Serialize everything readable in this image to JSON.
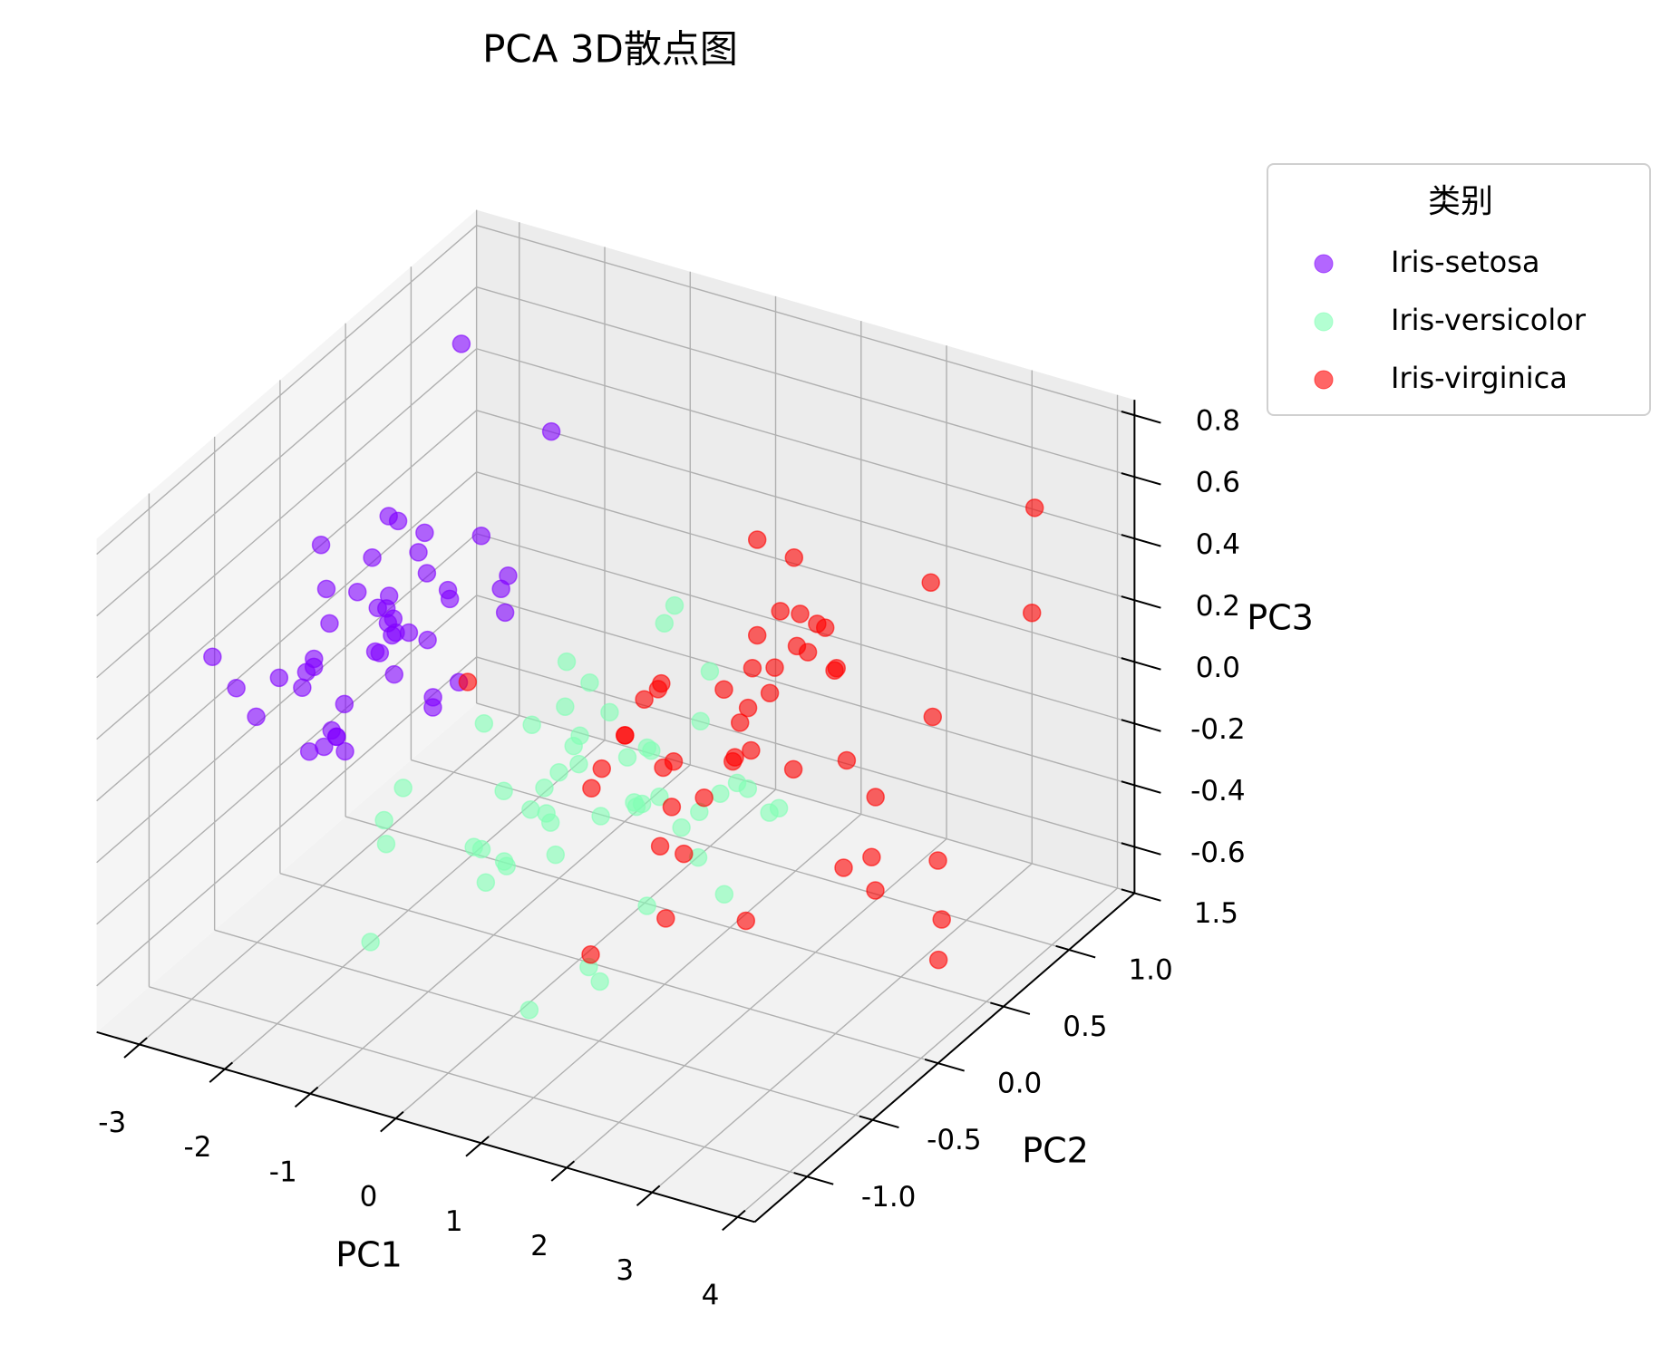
{
  "chart_data": {
    "type": "scatter3d",
    "title": "PCA 3D散点图",
    "x_label": "PC1",
    "y_label": "PC2",
    "z_label": "PC3",
    "xlim": [
      -3.5,
      4.2
    ],
    "ylim": [
      -1.4,
      1.5
    ],
    "zlim": [
      -0.75,
      0.85
    ],
    "xticks": [
      -3,
      -2,
      -1,
      0,
      1,
      2,
      3,
      4
    ],
    "yticks": [
      {
        "value": -1,
        "label": "-1.0"
      },
      -0.5,
      {
        "value": 0,
        "label": "0.0"
      },
      0.5,
      {
        "value": 1,
        "label": "1.0"
      },
      1.5
    ],
    "zticks": [
      -0.6,
      -0.4,
      -0.2,
      {
        "value": 0,
        "label": "0.0"
      },
      0.2,
      0.4,
      0.6,
      0.8
    ],
    "grid": true,
    "alpha": 0.6,
    "legend": {
      "title": "类别",
      "position": "upper right outside"
    },
    "series": [
      {
        "name": "Iris-setosa",
        "color": "#8000ff",
        "x": [
          -2.68,
          -2.71,
          -2.89,
          -2.75,
          -2.73,
          -2.28,
          -2.82,
          -2.63,
          -2.89,
          -2.67,
          -2.51,
          -2.61,
          -2.79,
          -3.23,
          -2.64,
          -2.38,
          -2.62,
          -2.65,
          -2.2,
          -2.59,
          -2.31,
          -2.54,
          -3.22,
          -2.3,
          -2.36,
          -2.51,
          -2.47,
          -2.56,
          -2.64,
          -2.63,
          -2.59,
          -2.41,
          -2.65,
          -2.6,
          -2.67,
          -2.87,
          -2.63,
          -2.98,
          -2.59,
          -2.77,
          -2.85,
          -2.99,
          -2.41,
          -2.21,
          -2.72,
          -2.54,
          -2.84,
          -2.64
        ],
        "y": [
          0.32,
          -0.18,
          -0.14,
          -0.32,
          0.33,
          0.74,
          -0.09,
          0.16,
          -0.58,
          -0.11,
          0.65,
          0.01,
          -0.24,
          -0.51,
          1.18,
          1.34,
          0.81,
          0.31,
          0.87,
          0.51,
          0.39,
          0.43,
          0.13,
          0.1,
          -0.04,
          -0.15,
          0.14,
          0.37,
          0.31,
          -0.19,
          -0.2,
          0.41,
          0.81,
          1.1,
          -0.11,
          0.08,
          0.6,
          0.49,
          0.23,
          0.27,
          -0.94,
          -0.34,
          0.19,
          0.44,
          -0.25,
          0.5,
          -0.23,
          0.2
        ],
        "z": [
          -0.03,
          -0.21,
          0.02,
          0.03,
          0.09,
          0.17,
          0.26,
          -0.02,
          0.02,
          -0.2,
          -0.02,
          0.23,
          -0.21,
          0.06,
          -0.15,
          0.28,
          0.74,
          0.03,
          -0.12,
          0.24,
          -0.26,
          0.21,
          0.29,
          0.09,
          0.38,
          -0.22,
          0.14,
          -0.03,
          -0.15,
          0.2,
          -0.14,
          0.16,
          -0.36,
          -0.16,
          -0.2,
          -0.18,
          -0.33,
          0.27,
          0.05,
          0.07,
          0.35,
          0.05,
          0.41,
          0.11,
          0.1,
          -0.1,
          0.04,
          -0.04
        ]
      },
      {
        "name": "Iris-versicolor",
        "color": "#80ffb4",
        "x": [
          1.28,
          0.93,
          1.46,
          0.18,
          1.09,
          0.64,
          1.1,
          -0.75,
          1.04,
          -0.01,
          -0.51,
          0.51,
          0.26,
          0.98,
          -0.17,
          0.93,
          0.66,
          0.23,
          0.94,
          0.04,
          1.12,
          0.36,
          1.3,
          0.92,
          0.71,
          0.9,
          1.33,
          1.56,
          0.81,
          -0.31,
          -0.07,
          -0.19,
          0.14,
          1.38,
          0.59,
          0.81,
          1.22,
          0.81,
          0.25,
          0.16,
          0.46,
          0.89,
          0.23,
          -0.71,
          0.36,
          0.33,
          0.38,
          0.64,
          -0.91,
          0.3
        ],
        "y": [
          0.69,
          0.32,
          0.5,
          -0.83,
          0.07,
          -0.42,
          0.28,
          -1.0,
          0.23,
          -0.72,
          -1.26,
          -0.1,
          -0.55,
          -0.12,
          -0.25,
          0.47,
          -0.35,
          -0.33,
          -0.54,
          -0.58,
          -0.08,
          -0.07,
          -0.33,
          -0.18,
          0.15,
          0.33,
          0.24,
          0.27,
          -0.16,
          -0.37,
          -0.7,
          -0.68,
          -0.31,
          -0.42,
          -0.48,
          0.2,
          0.41,
          -0.37,
          -0.27,
          -0.68,
          -0.67,
          -0.03,
          -0.4,
          -1.01,
          -0.5,
          -0.21,
          -0.29,
          0.02,
          -0.75,
          -0.35
        ],
        "z": [
          -0.41,
          -0.02,
          -0.34,
          -0.18,
          -0.26,
          0.09,
          0.17,
          0.01,
          -0.42,
          0.28,
          -0.27,
          0.13,
          -0.69,
          0.06,
          0.09,
          -0.31,
          0.33,
          -0.27,
          -0.5,
          -0.23,
          0.46,
          -0.23,
          -0.35,
          -0.1,
          -0.22,
          -0.32,
          -0.52,
          -0.17,
          0.03,
          -0.32,
          -0.14,
          -0.15,
          -0.18,
          0.02,
          0.44,
          0.39,
          -0.23,
          -0.62,
          0.19,
          0.06,
          0.02,
          0.01,
          -0.11,
          -0.06,
          0.02,
          0.08,
          0.08,
          -0.21,
          0.01,
          0.01
        ]
      },
      {
        "name": "Iris-virginica",
        "color": "#ff0000",
        "x": [
          2.53,
          1.41,
          2.61,
          1.97,
          2.35,
          3.4,
          0.52,
          2.93,
          2.32,
          2.92,
          1.66,
          1.8,
          2.17,
          1.34,
          1.59,
          1.9,
          1.95,
          3.49,
          3.8,
          1.3,
          2.43,
          1.2,
          3.5,
          1.39,
          2.28,
          2.61,
          1.26,
          1.29,
          2.12,
          2.39,
          2.84,
          3.23,
          2.16,
          1.44,
          1.78,
          3.08,
          2.14,
          1.9,
          1.17,
          2.11,
          2.31,
          1.92,
          1.41,
          2.56,
          2.42,
          1.94,
          1.53,
          1.76,
          1.9,
          1.39
        ],
        "y": [
          -0.01,
          -0.57,
          0.34,
          -0.18,
          -0.04,
          0.55,
          -1.19,
          0.35,
          -0.24,
          0.78,
          0.24,
          -0.22,
          0.22,
          -0.78,
          -0.54,
          0.12,
          0.04,
          1.18,
          0.26,
          -0.76,
          0.38,
          -0.61,
          0.46,
          -0.2,
          0.33,
          0.56,
          -0.18,
          -0.12,
          -0.21,
          0.46,
          0.38,
          1.37,
          -0.22,
          -0.14,
          -0.5,
          0.69,
          0.14,
          0.05,
          -0.16,
          0.37,
          0.18,
          0.41,
          -0.57,
          0.28,
          0.3,
          0.19,
          -0.38,
          0.08,
          0.12,
          -0.28
        ],
        "z": [
          0.76,
          0.3,
          -0.02,
          0.35,
          0.4,
          -0.55,
          0.63,
          -0.42,
          -0.35,
          0.42,
          0.24,
          0.0,
          -0.04,
          0.2,
          0.42,
          0.41,
          0.07,
          0.22,
          -0.22,
          -0.35,
          0.25,
          0.19,
          -0.64,
          -0.07,
          0.4,
          -0.22,
          0.04,
          0.04,
          0.14,
          -0.43,
          -0.33,
          0.47,
          0.16,
          -0.24,
          -0.29,
          0.03,
          0.5,
          0.2,
          0.28,
          0.28,
          0.49,
          0.27,
          0.3,
          0.29,
          0.41,
          0.2,
          -0.12,
          0.13,
          0.72,
          0.36
        ]
      }
    ]
  }
}
